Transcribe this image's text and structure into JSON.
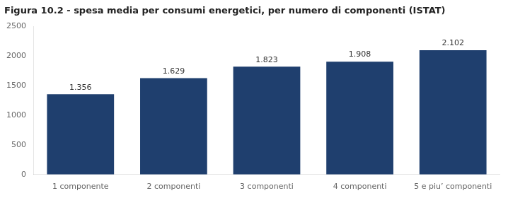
{
  "chart_data": {
    "type": "bar",
    "title": "Figura 10.2 - spesa media per consumi energetici, per numero di componenti (ISTAT)",
    "categories": [
      "1 componente",
      "2 componenti",
      "3 componenti",
      "4 componenti",
      "5 e piu’ componenti"
    ],
    "values": [
      1356,
      1629,
      1823,
      1908,
      2102
    ],
    "value_labels": [
      "1.356",
      "1.629",
      "1.823",
      "1.908",
      "2.102"
    ],
    "data_labels": true,
    "color": "#1F3F6E",
    "ylim": [
      0,
      2500
    ],
    "yticks": [
      0,
      500,
      1000,
      1500,
      2000,
      2500
    ],
    "grid": false
  }
}
